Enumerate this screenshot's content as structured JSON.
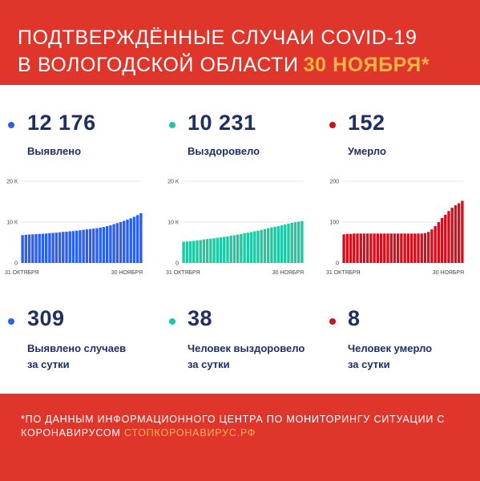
{
  "header": {
    "line1": "ПОДТВЕРЖДЁННЫЕ СЛУЧАИ COVID-19",
    "line2": "В ВОЛОГОДСКОЙ ОБЛАСТИ",
    "date": "30 НОЯБРЯ*"
  },
  "colors": {
    "red_background": "#e0352b",
    "accent_orange": "#f6b24a",
    "blue": "#2b5ff0",
    "teal": "#1fc7a3",
    "crimson": "#d0101d",
    "text_navy": "#1f2f63"
  },
  "stats": [
    {
      "value": "12 176",
      "label": "Выявлено",
      "color": "#2b5ff0"
    },
    {
      "value": "10 231",
      "label": "Выздоровело",
      "color": "#1fc7a3"
    },
    {
      "value": "152",
      "label": "Умерло",
      "color": "#d0101d"
    }
  ],
  "daily": [
    {
      "value": "309",
      "line1": "Выявлено случаев",
      "line2": "за сутки",
      "color": "#2b5ff0"
    },
    {
      "value": "38",
      "line1": "Человек выздоровело",
      "line2": "за сутки",
      "color": "#1fc7a3"
    },
    {
      "value": "8",
      "line1": "Человек умерло",
      "line2": "за сутки",
      "color": "#d0101d"
    }
  ],
  "chart_data": [
    {
      "type": "bar",
      "series": [
        {
          "color": "#2b5ff0",
          "values": [
            6800,
            6900,
            6950,
            7000,
            7050,
            7100,
            7150,
            7200,
            7300,
            7350,
            7400,
            7500,
            7600,
            7650,
            7750,
            7800,
            7900,
            8000,
            8100,
            8200,
            8300,
            8400,
            8500,
            8650,
            8800,
            9000,
            9200,
            9500,
            9750,
            10000,
            10300,
            10600,
            10900,
            11300,
            11700,
            12176
          ]
        }
      ],
      "x_tick_labels": [
        "31 ОКТЯБРЯ",
        "30 НОЯБРЯ"
      ],
      "y_tick_labels": [
        "0",
        "10 К",
        "20 К"
      ],
      "ylim": [
        0,
        20000
      ]
    },
    {
      "type": "bar",
      "series": [
        {
          "color": "#1fc7a3",
          "values": [
            5200,
            5250,
            5300,
            5400,
            5500,
            5600,
            5750,
            5850,
            5950,
            6050,
            6150,
            6250,
            6400,
            6500,
            6650,
            6800,
            6950,
            7100,
            7250,
            7400,
            7550,
            7750,
            7900,
            8100,
            8300,
            8500,
            8700,
            8850,
            9000,
            9200,
            9400,
            9600,
            9800,
            9950,
            10100,
            10231
          ]
        }
      ],
      "x_tick_labels": [
        "31 ОКТЯБРЯ",
        "30 НОЯБРЯ"
      ],
      "y_tick_labels": [
        "0",
        "10 К",
        "20 К"
      ],
      "ylim": [
        0,
        20000
      ]
    },
    {
      "type": "bar",
      "series": [
        {
          "color": "#d0101d",
          "values": [
            70,
            71,
            71,
            72,
            72,
            72,
            72,
            72,
            72,
            72,
            72,
            72,
            72,
            72,
            72,
            72,
            72,
            72,
            72,
            72,
            72,
            72,
            72,
            72,
            73,
            76,
            82,
            90,
            100,
            110,
            118,
            127,
            135,
            141,
            146,
            152
          ]
        }
      ],
      "x_tick_labels": [
        "31 ОКТЯБРЯ",
        "30 НОЯБРЯ"
      ],
      "y_tick_labels": [
        "0",
        "100",
        "200"
      ],
      "ylim": [
        0,
        200
      ]
    }
  ],
  "footer": {
    "note": "*ПО ДАННЫМ ИНФОРМАЦИОННОГО ЦЕНТРА ПО МОНИТОРИНГУ СИТУАЦИИ С КОРОНАВИРУСОМ ",
    "link": "СТОПКОРОНАВИРУС.РФ"
  }
}
